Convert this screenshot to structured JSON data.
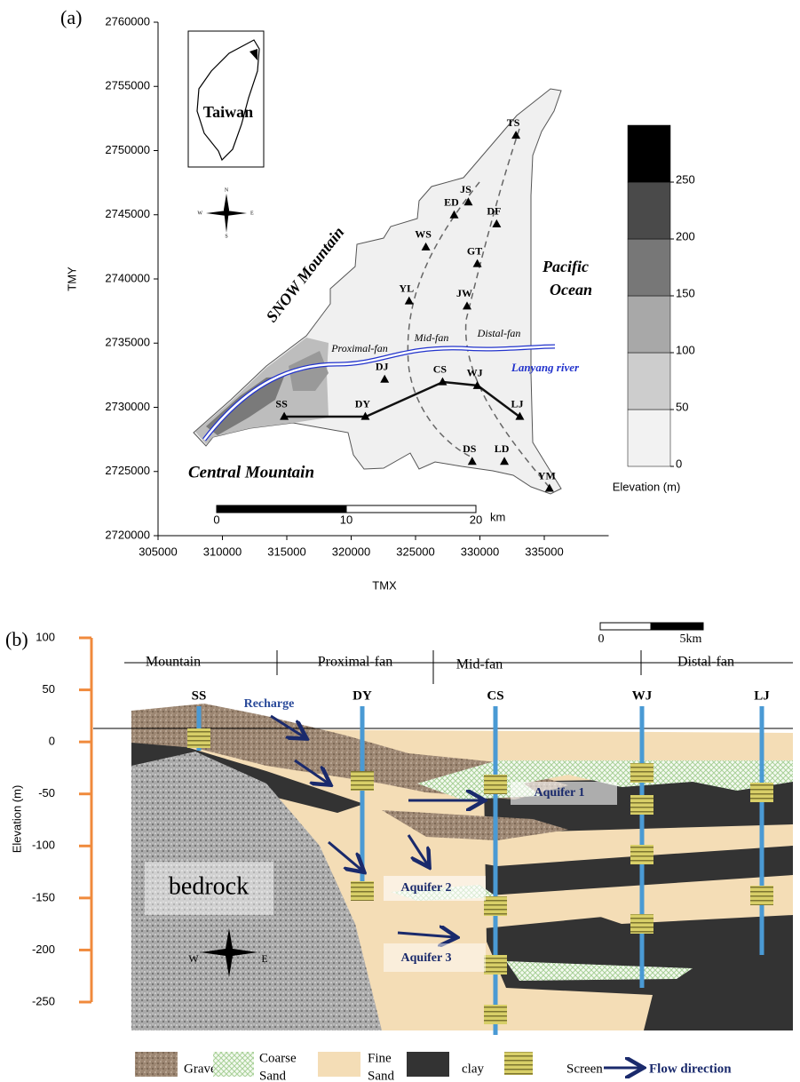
{
  "map": {
    "label": "(a)",
    "x_label": "TMX",
    "y_label": "TMY",
    "xlim": [
      305000,
      340000
    ],
    "ylim": [
      2720000,
      2760000
    ],
    "xticks": [
      305000,
      310000,
      315000,
      320000,
      325000,
      330000,
      335000
    ],
    "yticks": [
      2720000,
      2725000,
      2730000,
      2735000,
      2740000,
      2745000,
      2750000,
      2755000,
      2760000
    ],
    "inset_label": "Taiwan",
    "compass": [
      "N",
      "E",
      "S",
      "W"
    ],
    "stations": [
      {
        "name": "TS",
        "x": 332800,
        "y": 2751200
      },
      {
        "name": "JS",
        "x": 329100,
        "y": 2746000
      },
      {
        "name": "ED",
        "x": 328000,
        "y": 2745000
      },
      {
        "name": "DF",
        "x": 331300,
        "y": 2744300
      },
      {
        "name": "WS",
        "x": 325800,
        "y": 2742500
      },
      {
        "name": "GT",
        "x": 329800,
        "y": 2741200
      },
      {
        "name": "YL",
        "x": 324500,
        "y": 2738300
      },
      {
        "name": "JW",
        "x": 329000,
        "y": 2737900
      },
      {
        "name": "DJ",
        "x": 322600,
        "y": 2732200
      },
      {
        "name": "CS",
        "x": 327100,
        "y": 2732000
      },
      {
        "name": "WJ",
        "x": 329800,
        "y": 2731700
      },
      {
        "name": "LJ",
        "x": 333100,
        "y": 2729300
      },
      {
        "name": "SS",
        "x": 314800,
        "y": 2729300
      },
      {
        "name": "DY",
        "x": 321100,
        "y": 2729300
      },
      {
        "name": "DS",
        "x": 329400,
        "y": 2725800
      },
      {
        "name": "LD",
        "x": 331900,
        "y": 2725800
      },
      {
        "name": "YM",
        "x": 335400,
        "y": 2723700
      }
    ],
    "annotations": {
      "snow": "SNOW Mountain",
      "pacific": "Pacific",
      "ocean": "Ocean",
      "proximal": "Proximal-fan",
      "mid": "Mid-fan",
      "distal": "Distal-fan",
      "river": "Lanyang river",
      "central": "Central Mountain"
    },
    "colorbar": {
      "title": "Elevation (m)",
      "lim": [
        0,
        300
      ],
      "ticks": [
        0,
        50,
        100,
        150,
        200,
        250
      ]
    },
    "scale_bar": {
      "ticks": [
        0,
        10,
        20
      ],
      "unit": "km"
    }
  },
  "cross_section": {
    "label": "(b)",
    "y_label": "Elevation (m)",
    "ylim": [
      -250,
      100
    ],
    "yticks": [
      100,
      50,
      0,
      -50,
      -100,
      -150,
      -200,
      -250
    ],
    "zones": [
      "Mountain",
      "Proximal-fan",
      "Mid-fan",
      "Distal-fan"
    ],
    "scale_bar": [
      "0",
      "5km"
    ],
    "wells": [
      "SS",
      "DY",
      "CS",
      "WJ",
      "LJ"
    ],
    "annotations": {
      "recharge": "Recharge",
      "aquifer1": "Aquifer 1",
      "aquifer2": "Aquifer 2",
      "aquifer3": "Aquifer 3",
      "bedrock": "bedrock",
      "west": "W",
      "east": "E"
    },
    "legend": {
      "gravel": "Gravel",
      "coarse": [
        "Coarse",
        "Sand"
      ],
      "fine": [
        "Fine",
        "Sand"
      ],
      "clay": "clay",
      "screen": "Screen",
      "flow": "Flow direction"
    }
  }
}
